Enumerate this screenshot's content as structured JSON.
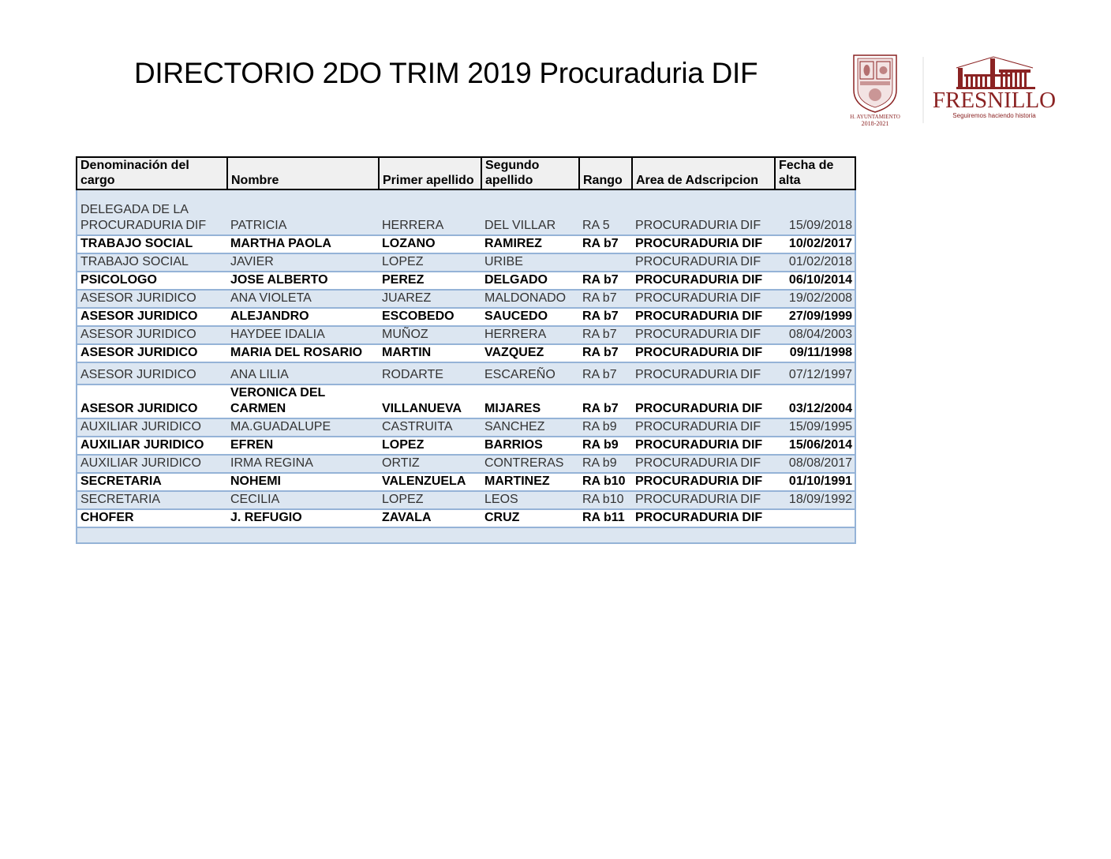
{
  "title": "DIRECTORIO 2DO TRIM 2019 Procuraduria DIF",
  "logos": {
    "ayuntamiento": {
      "line1": "H. AYUNTAMIENTO",
      "line2": "2018-2021"
    },
    "fresnillo": {
      "name": "FRESNILLO",
      "tagline": "Seguiremos haciendo historia"
    }
  },
  "colors": {
    "band_blue": "#dce6f1",
    "border_blue": "#95b3d7",
    "brand": "#8b2323"
  },
  "table": {
    "headers": [
      "Denominación del cargo",
      "Nombre",
      "Primer apellido",
      "Segundo apellido",
      "Rango",
      "Area de Adscripcion",
      "Fecha de alta"
    ],
    "rows": [
      [
        "DELEGADA DE LA PROCURADURIA DIF",
        "PATRICIA",
        "HERRERA",
        "DEL VILLAR",
        "RA 5",
        "PROCURADURIA DIF",
        "15/09/2018"
      ],
      [
        "TRABAJO SOCIAL",
        "MARTHA PAOLA",
        "LOZANO",
        "RAMIREZ",
        "RA b7",
        "PROCURADURIA DIF",
        "10/02/2017"
      ],
      [
        "TRABAJO SOCIAL",
        "JAVIER",
        "LOPEZ",
        "URIBE",
        "",
        "PROCURADURIA DIF",
        "01/02/2018"
      ],
      [
        "PSICOLOGO",
        "JOSE ALBERTO",
        "PEREZ",
        "DELGADO",
        "RA b7",
        "PROCURADURIA DIF",
        "06/10/2014"
      ],
      [
        "ASESOR JURIDICO",
        "ANA VIOLETA",
        "JUAREZ",
        "MALDONADO",
        "RA b7",
        "PROCURADURIA DIF",
        "19/02/2008"
      ],
      [
        "ASESOR JURIDICO",
        "ALEJANDRO",
        "ESCOBEDO",
        "SAUCEDO",
        "RA b7",
        "PROCURADURIA DIF",
        "27/09/1999"
      ],
      [
        "ASESOR JURIDICO",
        "HAYDEE IDALIA",
        "MUÑOZ",
        "HERRERA",
        "RA b7",
        "PROCURADURIA DIF",
        "08/04/2003"
      ],
      [
        "ASESOR JURIDICO",
        "MARIA DEL  ROSARIO",
        "MARTIN",
        "VAZQUEZ",
        "RA b7",
        "PROCURADURIA DIF",
        "09/11/1998"
      ],
      [
        "ASESOR JURIDICO",
        "ANA  LILIA",
        "RODARTE",
        "ESCAREÑO",
        "RA b7",
        "PROCURADURIA DIF",
        "07/12/1997"
      ],
      [
        "ASESOR JURIDICO",
        "VERONICA DEL CARMEN",
        "VILLANUEVA",
        "MIJARES",
        "RA b7",
        "PROCURADURIA DIF",
        "03/12/2004"
      ],
      [
        "AUXILIAR JURIDICO",
        "MA.GUADALUPE",
        "CASTRUITA",
        "SANCHEZ",
        "RA b9",
        "PROCURADURIA DIF",
        "15/09/1995"
      ],
      [
        "AUXILIAR JURIDICO",
        "EFREN",
        "LOPEZ",
        "BARRIOS",
        "RA b9",
        "PROCURADURIA DIF",
        "15/06/2014"
      ],
      [
        "AUXILIAR JURIDICO",
        "IRMA REGINA",
        "ORTIZ",
        "CONTRERAS",
        "RA b9",
        "PROCURADURIA DIF",
        "08/08/2017"
      ],
      [
        "SECRETARIA",
        "NOHEMI",
        "VALENZUELA",
        "MARTINEZ",
        "RA b10",
        "PROCURADURIA DIF",
        "01/10/1991"
      ],
      [
        "SECRETARIA",
        "CECILIA",
        "LOPEZ",
        "LEOS",
        "RA b10",
        "PROCURADURIA DIF",
        "18/09/1992"
      ],
      [
        "CHOFER",
        "J. REFUGIO",
        "ZAVALA",
        "CRUZ",
        "RA b11",
        "PROCURADURIA DIF",
        ""
      ],
      [
        "",
        "",
        "",
        "",
        "",
        "",
        ""
      ]
    ]
  }
}
